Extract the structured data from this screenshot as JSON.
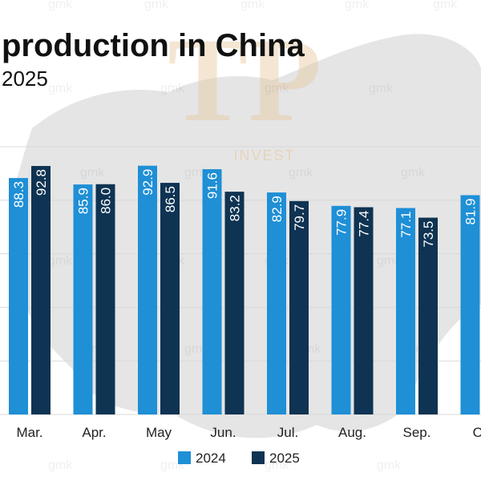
{
  "chart_data": {
    "type": "bar",
    "title": "production in China",
    "subtitle": "2025",
    "categories": [
      "Mar.",
      "Apr.",
      "May",
      "Jun.",
      "Jul.",
      "Aug.",
      "Sep.",
      "Oc"
    ],
    "series": [
      {
        "name": "2024",
        "values": [
          88.3,
          85.9,
          92.9,
          91.6,
          82.9,
          77.9,
          77.1,
          81.9
        ]
      },
      {
        "name": "2025",
        "values": [
          92.8,
          86.0,
          86.5,
          83.2,
          79.7,
          77.4,
          73.5,
          null
        ]
      }
    ],
    "data_labels": {
      "2024": [
        "88.3",
        "85.9",
        "92.9",
        "91.6",
        "82.9",
        "77.9",
        "77.1",
        "81.9"
      ],
      "2025": [
        "92.8",
        "86.0",
        "86.5",
        "83.2",
        "79.7",
        "77.4",
        "73.5",
        ""
      ]
    },
    "ylim": [
      0,
      100
    ],
    "grid": true,
    "legend": "bottom",
    "colors": {
      "2024": "#1f8fd6",
      "2025": "#0f3352"
    }
  },
  "watermark": {
    "logo_text": "TP",
    "logo_caption": "INVEST",
    "repeated_text": "gmk"
  }
}
